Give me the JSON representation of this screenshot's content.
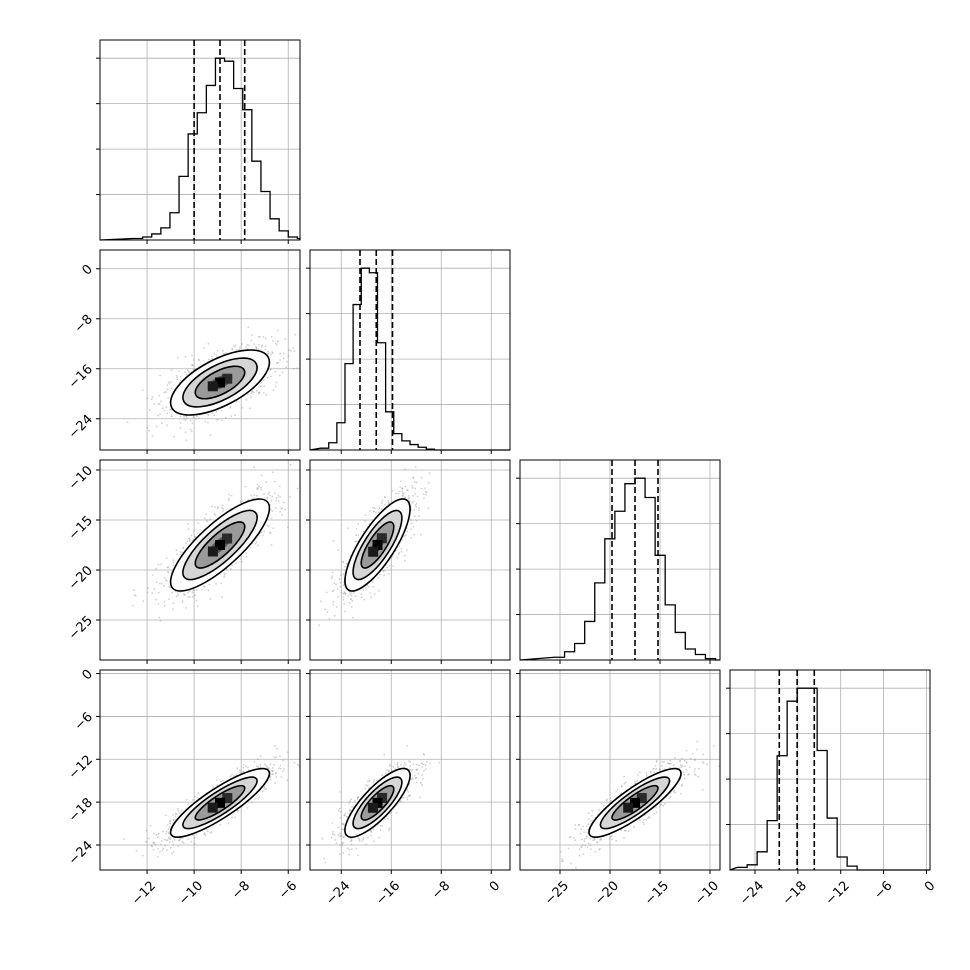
{
  "chart_data": {
    "type": "corner",
    "title": "",
    "grid": true,
    "variables": [
      {
        "index": 0,
        "range": [
          -14.0,
          -5.5
        ],
        "ticks": [
          -12,
          -10,
          -8,
          -6
        ],
        "tick_labels": [
          "−12",
          "−10",
          "−8",
          "−6"
        ],
        "quantiles": [
          -10.0,
          -8.9,
          -7.85
        ],
        "mean": -8.9,
        "std": 1.05
      },
      {
        "index": 1,
        "range": [
          -29.0,
          3.0
        ],
        "ticks": [
          -24,
          -16,
          -8,
          0
        ],
        "tick_labels": [
          "−24",
          "−16",
          "−8",
          "0"
        ],
        "quantiles": [
          -21.0,
          -18.4,
          -15.8
        ],
        "mean": -18.2,
        "std": 2.6
      },
      {
        "index": 2,
        "range": [
          -29.0,
          -9.0
        ],
        "ticks": [
          -25,
          -20,
          -15,
          -10
        ],
        "tick_labels": [
          "−25",
          "−20",
          "−15",
          "−10"
        ],
        "quantiles": [
          -19.8,
          -17.5,
          -15.2
        ],
        "mean": -17.5,
        "std": 2.3
      },
      {
        "index": 3,
        "range": [
          -27.5,
          0.5
        ],
        "ticks": [
          -24,
          -18,
          -12,
          -6,
          0
        ],
        "tick_labels": [
          "−24",
          "−18",
          "−12",
          "−6",
          "0"
        ],
        "quantiles": [
          -20.6,
          -18.1,
          -15.7
        ],
        "mean": -18.1,
        "std": 2.4
      }
    ],
    "histograms": [
      {
        "var": 0,
        "counts": [
          1,
          2,
          4,
          8,
          18,
          42,
          70,
          84,
          102,
          120,
          118,
          100,
          86,
          52,
          32,
          14,
          6,
          2,
          1
        ]
      },
      {
        "var": 1,
        "counts": [
          2,
          8,
          30,
          95,
          160,
          200,
          195,
          118,
          42,
          18,
          10,
          6,
          3,
          1
        ]
      },
      {
        "var": 2,
        "counts": [
          2,
          6,
          12,
          28,
          56,
          88,
          108,
          128,
          132,
          118,
          76,
          40,
          20,
          8,
          4,
          1
        ]
      },
      {
        "var": 3,
        "counts": [
          2,
          4,
          14,
          38,
          88,
          130,
          140,
          140,
          92,
          40,
          10,
          3
        ]
      }
    ],
    "pairs": [
      {
        "x": 0,
        "y": 1,
        "corr": 0.62
      },
      {
        "x": 0,
        "y": 2,
        "corr": 0.8
      },
      {
        "x": 1,
        "y": 2,
        "corr": 0.78
      },
      {
        "x": 0,
        "y": 3,
        "corr": 0.86
      },
      {
        "x": 1,
        "y": 3,
        "corr": 0.8
      },
      {
        "x": 2,
        "y": 3,
        "corr": 0.86
      }
    ],
    "contour_levels_sigma": [
      0.5,
      1.0,
      1.5,
      2.0
    ],
    "colors": {
      "line": "#000000",
      "scatter": "#9a9a9a",
      "grid": "#b0b0b0",
      "fill_light": "#ffffff",
      "fill_dark": "#000000"
    }
  }
}
